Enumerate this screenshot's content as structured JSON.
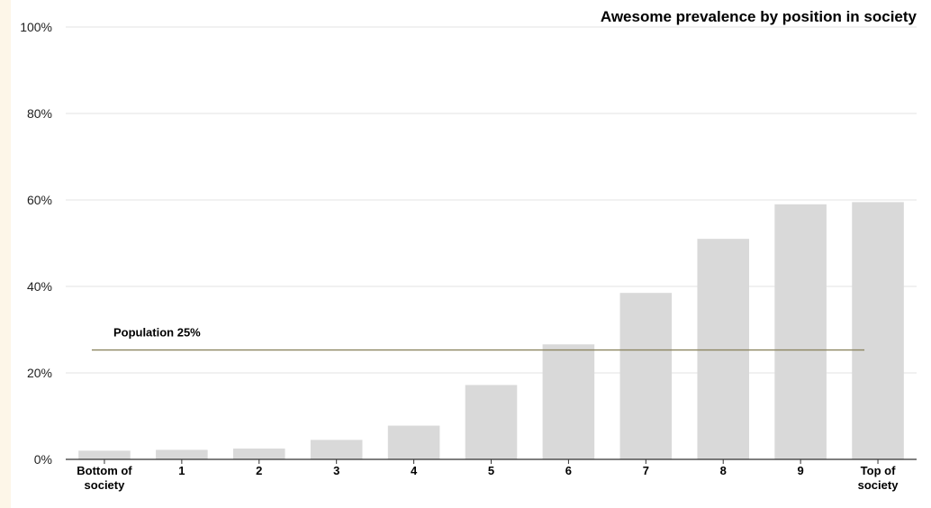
{
  "chart_data": {
    "type": "bar",
    "title": "Awesome prevalence by position in society",
    "xlabel": "",
    "ylabel": "",
    "categories": [
      [
        "Bottom of",
        "society"
      ],
      [
        "1"
      ],
      [
        "2"
      ],
      [
        "3"
      ],
      [
        "4"
      ],
      [
        "5"
      ],
      [
        "6"
      ],
      [
        "7"
      ],
      [
        "8"
      ],
      [
        "9"
      ],
      [
        "Top of",
        "society"
      ]
    ],
    "values": [
      2.0,
      2.2,
      2.5,
      4.5,
      7.8,
      17.2,
      26.6,
      38.5,
      51.0,
      59.0,
      59.5
    ],
    "ylim": [
      0,
      100
    ],
    "yticks": [
      0,
      20,
      40,
      60,
      80,
      100
    ],
    "ytick_labels": [
      "0%",
      "20%",
      "40%",
      "60%",
      "80%",
      "100%"
    ],
    "reference_line": {
      "label": "Population 25%",
      "value": 25.3,
      "color": "#8c8560"
    },
    "grid": true,
    "bar_color": "#d9d9d9"
  }
}
